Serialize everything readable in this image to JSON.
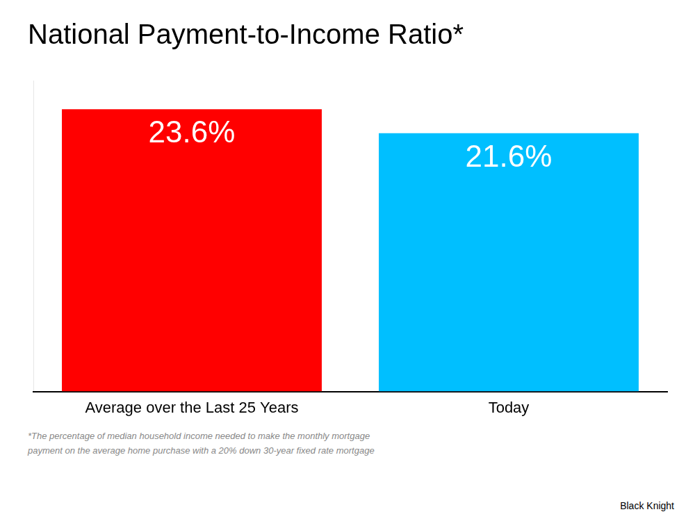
{
  "chart_data": {
    "type": "bar",
    "title": "National Payment-to-Income Ratio*",
    "categories": [
      "Average over the Last 25 Years",
      "Today"
    ],
    "values": [
      23.6,
      21.6
    ],
    "colors": [
      "#ff0000",
      "#00bfff"
    ],
    "value_labels": [
      "23.6%",
      "21.6%"
    ],
    "data_labels": true,
    "ylim": [
      0,
      26
    ],
    "yticks": [],
    "grid": false,
    "tick_labels": "x",
    "footnote": "*The percentage of median household income needed to make the monthly mortgage\npayment on the average home purchase with a 20% down 30-year fixed rate mortgage",
    "source": "Black Knight"
  }
}
